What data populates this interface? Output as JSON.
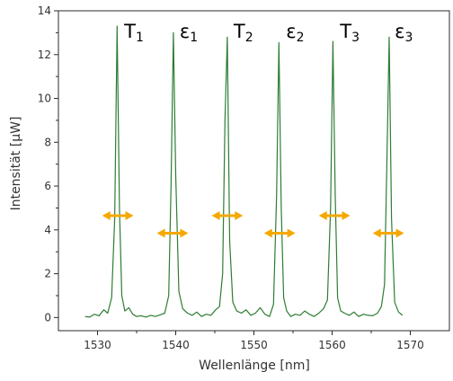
{
  "chart_data": {
    "type": "line",
    "xlabel": "Wellenlänge [nm]",
    "ylabel": "Intensität [µW]",
    "xlim": [
      1525,
      1575
    ],
    "ylim": [
      -0.6,
      14
    ],
    "x_ticks": [
      1530,
      1540,
      1550,
      1560,
      1570
    ],
    "y_ticks": [
      0,
      2,
      4,
      6,
      8,
      10,
      12,
      14
    ],
    "grid": false,
    "series": [
      {
        "color": "#2e7d32",
        "x": [
          1528.4,
          1529.0,
          1529.6,
          1530.2,
          1530.8,
          1531.3,
          1531.8,
          1532.2,
          1532.5,
          1532.8,
          1533.1,
          1533.5,
          1534.0,
          1534.5,
          1535.0,
          1535.6,
          1536.2,
          1536.8,
          1537.4,
          1538.0,
          1538.6,
          1539.1,
          1539.4,
          1539.7,
          1540.0,
          1540.4,
          1540.9,
          1541.5,
          1542.1,
          1542.7,
          1543.3,
          1543.9,
          1544.5,
          1545.1,
          1545.6,
          1546.0,
          1546.3,
          1546.6,
          1546.9,
          1547.3,
          1547.8,
          1548.4,
          1549.0,
          1549.6,
          1550.2,
          1550.8,
          1551.4,
          1552.0,
          1552.5,
          1552.9,
          1553.2,
          1553.5,
          1553.8,
          1554.2,
          1554.7,
          1555.3,
          1555.9,
          1556.5,
          1557.1,
          1557.7,
          1558.3,
          1558.9,
          1559.4,
          1559.8,
          1560.1,
          1560.4,
          1560.7,
          1561.1,
          1561.6,
          1562.2,
          1562.8,
          1563.4,
          1564.0,
          1564.6,
          1565.2,
          1565.8,
          1566.3,
          1566.7,
          1567.0,
          1567.3,
          1567.6,
          1568.0,
          1568.5,
          1569.0
        ],
        "y": [
          0.05,
          0.02,
          0.15,
          0.08,
          0.35,
          0.2,
          0.9,
          4.5,
          13.3,
          5.0,
          1.0,
          0.3,
          0.45,
          0.15,
          0.05,
          0.08,
          0.02,
          0.1,
          0.05,
          0.12,
          0.2,
          1.0,
          6.0,
          13.0,
          6.5,
          1.2,
          0.4,
          0.2,
          0.1,
          0.25,
          0.05,
          0.15,
          0.1,
          0.35,
          0.5,
          2.0,
          9.0,
          12.8,
          3.5,
          0.7,
          0.3,
          0.2,
          0.35,
          0.1,
          0.2,
          0.45,
          0.15,
          0.05,
          0.6,
          5.5,
          12.55,
          5.0,
          0.9,
          0.3,
          0.05,
          0.15,
          0.1,
          0.3,
          0.15,
          0.05,
          0.2,
          0.4,
          0.8,
          5.0,
          12.6,
          5.5,
          0.9,
          0.3,
          0.2,
          0.1,
          0.25,
          0.05,
          0.15,
          0.1,
          0.08,
          0.2,
          0.5,
          1.5,
          7.0,
          12.8,
          4.5,
          0.7,
          0.25,
          0.1
        ]
      }
    ],
    "peak_labels": [
      {
        "x": 1532.6,
        "letter": "T",
        "sub": "1"
      },
      {
        "x": 1539.7,
        "letter": "ε",
        "sub": "1"
      },
      {
        "x": 1546.6,
        "letter": "T",
        "sub": "2"
      },
      {
        "x": 1553.3,
        "letter": "ε",
        "sub": "2"
      },
      {
        "x": 1560.2,
        "letter": "T",
        "sub": "3"
      },
      {
        "x": 1567.2,
        "letter": "ε",
        "sub": "3"
      }
    ],
    "double_arrows": [
      {
        "x_center": 1532.6,
        "half_width": 2.0,
        "y": 4.65
      },
      {
        "x_center": 1539.6,
        "half_width": 2.0,
        "y": 3.85
      },
      {
        "x_center": 1546.6,
        "half_width": 2.0,
        "y": 4.65
      },
      {
        "x_center": 1553.3,
        "half_width": 2.0,
        "y": 3.85
      },
      {
        "x_center": 1560.3,
        "half_width": 2.0,
        "y": 4.65
      },
      {
        "x_center": 1567.2,
        "half_width": 2.0,
        "y": 3.85
      }
    ],
    "arrow_color": "#f5a800"
  }
}
